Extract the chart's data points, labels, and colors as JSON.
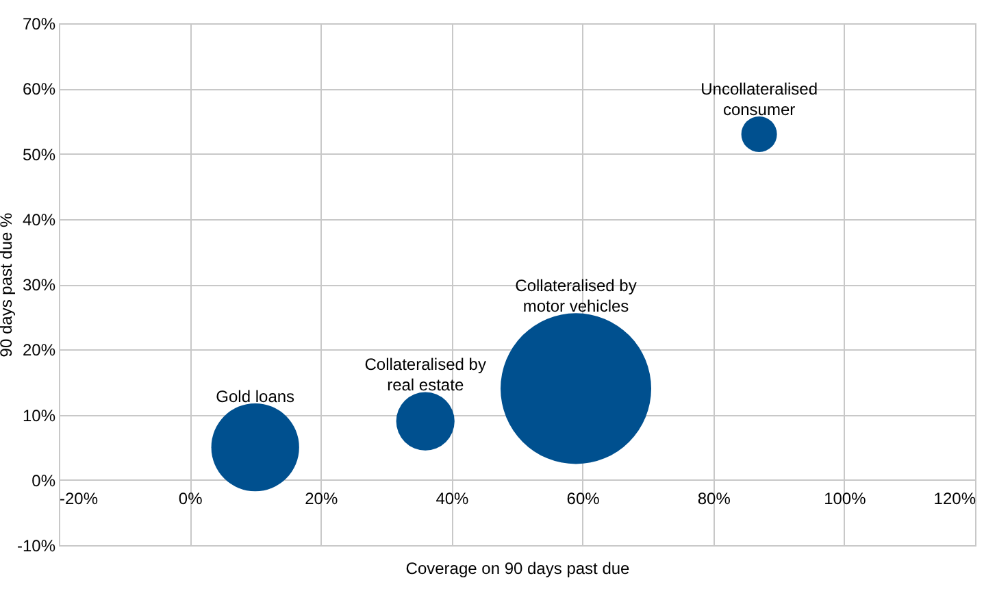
{
  "chart_data": {
    "type": "bubble",
    "xlabel": "Coverage on 90 days past due",
    "ylabel": "90 days past due %",
    "series": [
      {
        "name": "Gold loans",
        "color": "#00508f",
        "x": [
          10
        ],
        "values": [
          5
        ],
        "sizes": [
          0.34
        ]
      },
      {
        "name": "Collateralised by\nreal estate",
        "color": "#00508f",
        "x": [
          36
        ],
        "values": [
          9
        ],
        "sizes": [
          0.15
        ]
      },
      {
        "name": "Collateralised by\nmotor vehicles",
        "color": "#00508f",
        "x": [
          59
        ],
        "values": [
          14
        ],
        "sizes": [
          1
        ]
      },
      {
        "name": "Uncollateralised\nconsumer",
        "color": "#00508f",
        "x": [
          87
        ],
        "values": [
          53
        ],
        "sizes": [
          0.056
        ]
      }
    ],
    "xlim": [
      -20,
      120
    ],
    "xticks": [
      {
        "value": -20,
        "label": "-20%"
      },
      {
        "value": 0,
        "label": "0%"
      },
      {
        "value": 20,
        "label": "20%"
      },
      {
        "value": 40,
        "label": "40%"
      },
      {
        "value": 60,
        "label": "60%"
      },
      {
        "value": 80,
        "label": "80%"
      },
      {
        "value": 100,
        "label": "100%"
      },
      {
        "value": 120,
        "label": "120%"
      }
    ],
    "ylim": [
      -10,
      70
    ],
    "yticks": [
      {
        "value": -10,
        "label": "-10%"
      },
      {
        "value": 0,
        "label": "0%"
      },
      {
        "value": 10,
        "label": "10%"
      },
      {
        "value": 20,
        "label": "20%"
      },
      {
        "value": 30,
        "label": "30%"
      },
      {
        "value": 40,
        "label": "40%"
      },
      {
        "value": 50,
        "label": "50%"
      },
      {
        "value": 60,
        "label": "60%"
      },
      {
        "value": 70,
        "label": "70%"
      }
    ],
    "grid": true
  }
}
